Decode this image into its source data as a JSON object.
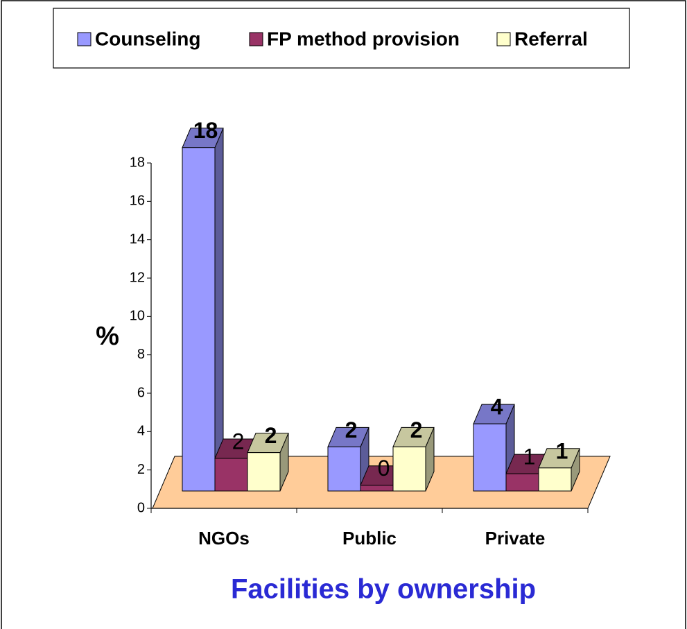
{
  "chart_data": {
    "type": "bar3d",
    "y_label": "%",
    "x_label": "Facilities by ownership",
    "categories": [
      "NGOs",
      "Public",
      "Private"
    ],
    "series": [
      {
        "name": "Counseling",
        "color": "#9999ff",
        "values": [
          17.9,
          2.3,
          3.5
        ],
        "value_labels": [
          "18",
          "2",
          "4"
        ]
      },
      {
        "name": "FP method provision",
        "color": "#993366",
        "values": [
          1.7,
          0.3,
          0.9
        ],
        "value_labels": [
          "2",
          "0",
          "1"
        ]
      },
      {
        "name": "Referral",
        "color": "#ffffcc",
        "values": [
          2.0,
          2.3,
          1.2
        ],
        "value_labels": [
          "2",
          "2",
          "1"
        ]
      }
    ],
    "ylim": [
      0,
      18
    ],
    "yticks": [
      0,
      2,
      4,
      6,
      8,
      10,
      12,
      14,
      16,
      18
    ],
    "legend": "top"
  }
}
